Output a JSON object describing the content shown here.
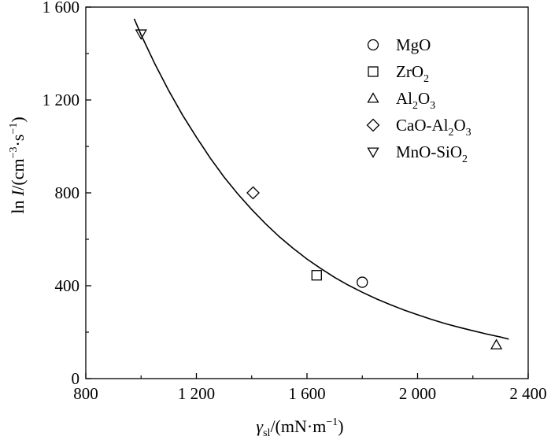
{
  "chart_data": {
    "type": "scatter",
    "xlabel": {
      "symbol": "γ",
      "subscript": "sl",
      "unit": "/(mN·m",
      "unit_sup": "−1",
      "close": ")"
    },
    "ylabel": {
      "prefix": "ln ",
      "symbol": "I",
      "unit": "/(cm",
      "sup1": "−3",
      "mid": "·s",
      "sup2": "−1",
      "close": ")"
    },
    "xlim": [
      800,
      2400
    ],
    "ylim": [
      0,
      1600
    ],
    "x_ticks": [
      {
        "value": 800,
        "label": "800"
      },
      {
        "value": 1200,
        "label": "1 200"
      },
      {
        "value": 1600,
        "label": "1 600"
      },
      {
        "value": 2000,
        "label": "2 000"
      },
      {
        "value": 2400,
        "label": "2 400"
      }
    ],
    "y_ticks": [
      {
        "value": 0,
        "label": "0"
      },
      {
        "value": 400,
        "label": "400"
      },
      {
        "value": 800,
        "label": "800"
      },
      {
        "value": 1200,
        "label": "1 200"
      },
      {
        "value": 1600,
        "label": "1 600"
      }
    ],
    "grid": false,
    "legend_position": "top-right",
    "series": [
      {
        "label_parts": [
          [
            "MgO",
            ""
          ]
        ],
        "marker": "circle",
        "points": [
          {
            "x": 1800,
            "y": 415
          }
        ]
      },
      {
        "label_parts": [
          [
            "ZrO",
            ""
          ],
          [
            "2",
            "sub"
          ]
        ],
        "marker": "square",
        "points": [
          {
            "x": 1635,
            "y": 445
          }
        ]
      },
      {
        "label_parts": [
          [
            "Al",
            ""
          ],
          [
            "2",
            "sub"
          ],
          [
            "O",
            ""
          ],
          [
            "3",
            "sub"
          ]
        ],
        "marker": "triangle-up",
        "points": [
          {
            "x": 2285,
            "y": 145
          }
        ]
      },
      {
        "label_parts": [
          [
            "CaO-Al",
            ""
          ],
          [
            "2",
            "sub"
          ],
          [
            "O",
            ""
          ],
          [
            "3",
            "sub"
          ]
        ],
        "marker": "diamond",
        "points": [
          {
            "x": 1405,
            "y": 800
          }
        ]
      },
      {
        "label_parts": [
          [
            "MnO-SiO",
            ""
          ],
          [
            "2",
            "sub"
          ]
        ],
        "marker": "triangle-down",
        "points": [
          {
            "x": 1000,
            "y": 1485
          }
        ]
      }
    ],
    "fit_curve": {
      "x": [
        975,
        1000,
        1050,
        1100,
        1150,
        1200,
        1250,
        1300,
        1350,
        1400,
        1450,
        1500,
        1550,
        1600,
        1650,
        1700,
        1750,
        1800,
        1850,
        1900,
        1950,
        2000,
        2050,
        2100,
        2150,
        2200,
        2250,
        2300,
        2330
      ],
      "y": [
        1550,
        1480,
        1355,
        1240,
        1135,
        1040,
        950,
        868,
        795,
        728,
        667,
        611,
        561,
        515,
        474,
        436,
        402,
        372,
        344,
        319,
        296,
        275,
        255,
        237,
        221,
        206,
        192,
        179,
        170
      ]
    }
  }
}
